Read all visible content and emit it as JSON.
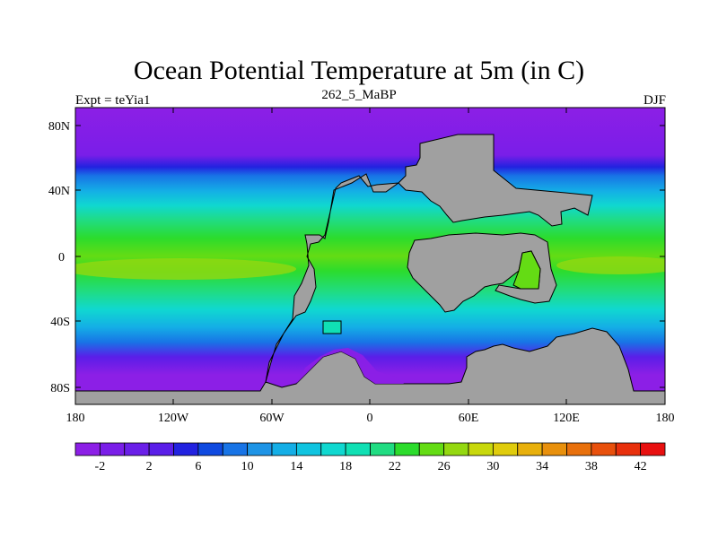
{
  "title": "Ocean Potential Temperature at 5m (in C)",
  "subtitle_left": "Expt = teYia1",
  "subtitle_center": "262_5_MaBP",
  "subtitle_right": "DJF",
  "lat_ticks": [
    "80N",
    "40N",
    "0",
    "40S",
    "80S"
  ],
  "lon_ticks": [
    "180",
    "120W",
    "60W",
    "0",
    "60E",
    "120E",
    "180"
  ],
  "colorbar": {
    "labels": [
      "-2",
      "2",
      "6",
      "10",
      "14",
      "18",
      "22",
      "26",
      "30",
      "34",
      "38",
      "42"
    ],
    "colors": [
      "#8c1fe6",
      "#7a1ee8",
      "#6a1fe8",
      "#5a1ee8",
      "#2222e0",
      "#0f4ae0",
      "#1874e6",
      "#1e94e6",
      "#14aee6",
      "#10c4e0",
      "#10d8d0",
      "#10e0b4",
      "#20dc82",
      "#2cdc2c",
      "#64dc14",
      "#94d810",
      "#c8d80c",
      "#e0cc0c",
      "#e8b00c",
      "#e8900c",
      "#e8700c",
      "#e8500c",
      "#e8300c",
      "#e81010"
    ]
  },
  "land_color": "#a0a0a0"
}
